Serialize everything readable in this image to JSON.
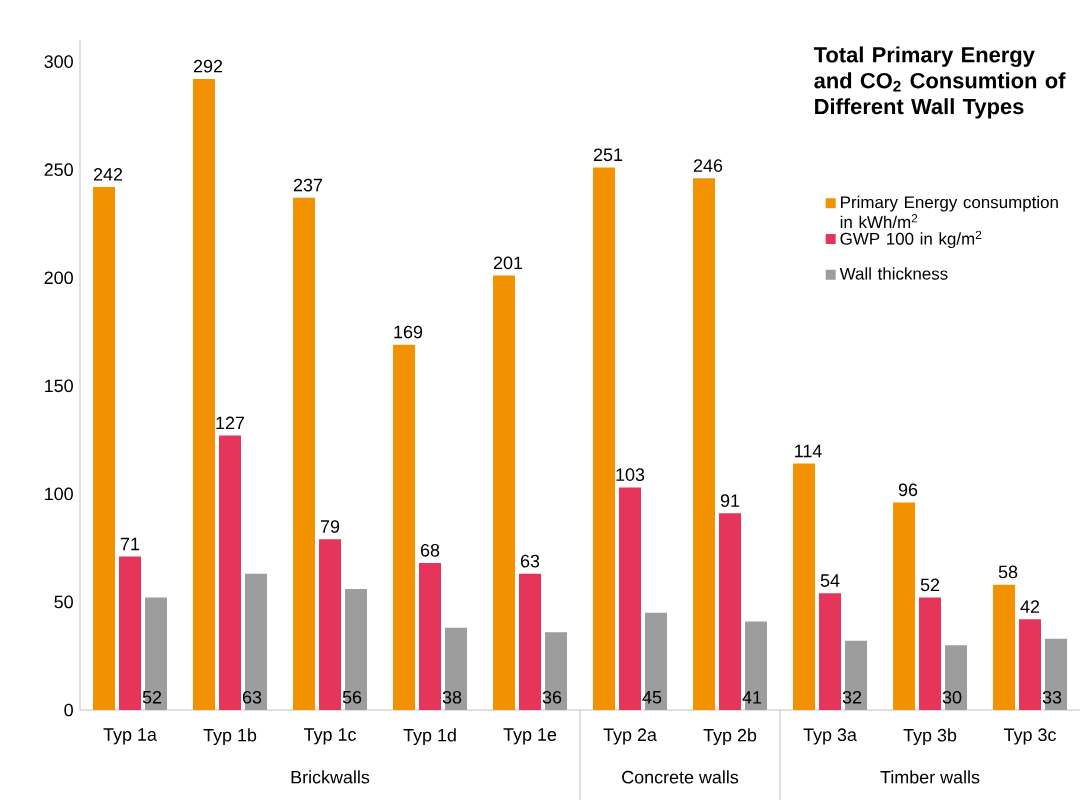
{
  "chart_data": {
    "type": "bar",
    "title": "Total Primary Energy and CO$_{2}$ Consumtion of Different Wall Types",
    "categories": [
      "Typ 1a",
      "Typ 1b",
      "Typ 1c",
      "Typ 1d",
      "Typ 1e",
      "Typ 2a",
      "Typ 2b",
      "Typ 3a",
      "Typ 3b",
      "Typ 3c"
    ],
    "series": [
      {
        "name": "Primary Energy consumption in kWh/m$^{2}$",
        "color": "#f39200",
        "values": [
          242,
          292,
          237,
          169,
          201,
          251,
          246,
          114,
          96,
          58
        ]
      },
      {
        "name": "GWP 100 in kg/m$^{2}$",
        "color": "#e6355a",
        "values": [
          71,
          127,
          79,
          68,
          63,
          103,
          91,
          54,
          52,
          42
        ]
      },
      {
        "name": "Wall thickness",
        "color": "#9d9d9d",
        "values": [
          52,
          63,
          56,
          38,
          36,
          45,
          41,
          32,
          30,
          33
        ]
      }
    ],
    "annotations": [
      "Brickwalls",
      "Concrete walls",
      "Timber walls"
    ],
    "ylim": [
      0,
      310
    ],
    "yticks": [
      0,
      50,
      100,
      150,
      200,
      250,
      300
    ],
    "data_labels": true,
    "legend": "top right",
    "grid": false
  }
}
